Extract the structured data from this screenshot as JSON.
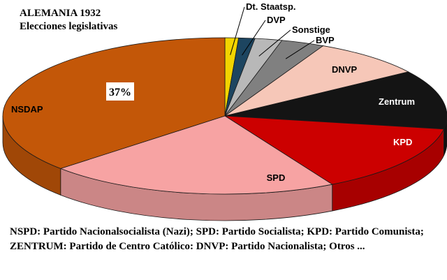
{
  "chart_data": {
    "type": "pie",
    "title": "ALEMANIA 1932",
    "subtitle": "Elecciones legislativas",
    "three_d": true,
    "slices": [
      {
        "label": "Dt. Staatsp.",
        "value": 1.0,
        "color": "#f2d400",
        "text_color": "#000000",
        "pct_label": ""
      },
      {
        "label": "DVP",
        "value": 1.2,
        "color": "#1d4560",
        "text_color": "#000000",
        "pct_label": ""
      },
      {
        "label": "Sonstige",
        "value": 2.0,
        "color": "#b8b8b8",
        "text_color": "#000000",
        "pct_label": ""
      },
      {
        "label": "BVP",
        "value": 3.2,
        "color": "#808080",
        "text_color": "#000000",
        "pct_label": ""
      },
      {
        "label": "DNVP",
        "value": 8.3,
        "color": "#f6c7b8",
        "text_color": "#000000",
        "pct_label": ""
      },
      {
        "label": "Zentrum",
        "value": 12.4,
        "color": "#141414",
        "text_color": "#ffffff",
        "pct_label": ""
      },
      {
        "label": "KPD",
        "value": 14.5,
        "color": "#cc0000",
        "text_color": "#ffffff",
        "pct_label": ""
      },
      {
        "label": "SPD",
        "value": 21.6,
        "color": "#f7a3a3",
        "text_color": "#000000",
        "pct_label": ""
      },
      {
        "label": "NSDAP",
        "value": 37.3,
        "color": "#c35708",
        "text_color": "#000000",
        "pct_label": "37%"
      }
    ]
  },
  "caption": "NSPD: Partido Nacionalsocialista (Nazi); SPD: Partido Socialista; KPD: Partido Comunista; ZENTRUM: Partido de Centro Católico: DNVP: Partido Nacionalista; Otros ..."
}
